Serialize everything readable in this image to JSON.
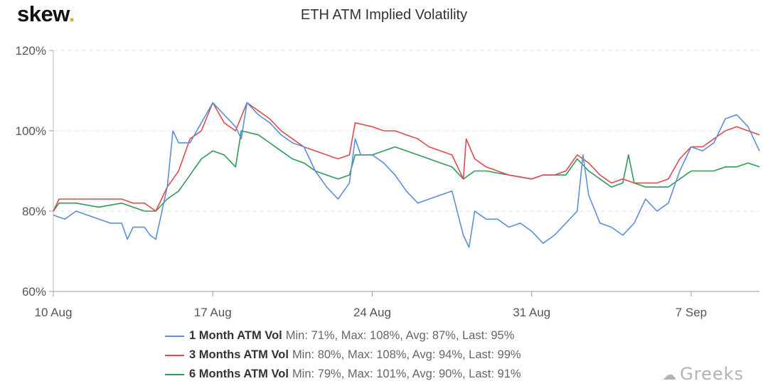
{
  "brand": {
    "name": "skew",
    "dot": "."
  },
  "watermark": {
    "icon": "wechat-icon",
    "text": "Greeks"
  },
  "chart_data": {
    "type": "line",
    "title": "ETH ATM Implied Volatility",
    "xlabel": "",
    "ylabel": "",
    "x_axis_type": "date",
    "x_range": [
      "2020-08-10",
      "2020-09-10"
    ],
    "x_ticks": [
      "10 Aug",
      "17 Aug",
      "24 Aug",
      "31 Aug",
      "7 Sep"
    ],
    "x_tick_dates": [
      "2020-08-10",
      "2020-08-17",
      "2020-08-24",
      "2020-08-31",
      "2020-09-07"
    ],
    "ylim": [
      60,
      120
    ],
    "y_ticks": [
      "60%",
      "80%",
      "100%",
      "120%"
    ],
    "y_tick_values": [
      60,
      80,
      100,
      120
    ],
    "grid": "horizontal dashed",
    "legend_position": "bottom",
    "series": [
      {
        "name": "1 Month ATM Vol",
        "stats": "Min: 71%, Max: 108%, Avg: 87%, Last: 95%",
        "color": "#5b8fd6",
        "points": [
          [
            "2020-08-10T00:00",
            79
          ],
          [
            "2020-08-10T12:00",
            78
          ],
          [
            "2020-08-11T00:00",
            80
          ],
          [
            "2020-08-11T12:00",
            79
          ],
          [
            "2020-08-12T00:00",
            78
          ],
          [
            "2020-08-12T12:00",
            77
          ],
          [
            "2020-08-13T00:00",
            77
          ],
          [
            "2020-08-13T06:00",
            73
          ],
          [
            "2020-08-13T12:00",
            76
          ],
          [
            "2020-08-14T00:00",
            76
          ],
          [
            "2020-08-14T06:00",
            74
          ],
          [
            "2020-08-14T12:00",
            73
          ],
          [
            "2020-08-15T00:00",
            86
          ],
          [
            "2020-08-15T06:00",
            100
          ],
          [
            "2020-08-15T12:00",
            97
          ],
          [
            "2020-08-16T00:00",
            97
          ],
          [
            "2020-08-16T12:00",
            102
          ],
          [
            "2020-08-17T00:00",
            107
          ],
          [
            "2020-08-17T12:00",
            104
          ],
          [
            "2020-08-18T00:00",
            101
          ],
          [
            "2020-08-18T06:00",
            98
          ],
          [
            "2020-08-18T12:00",
            107
          ],
          [
            "2020-08-19T00:00",
            104
          ],
          [
            "2020-08-19T12:00",
            102
          ],
          [
            "2020-08-20T00:00",
            99
          ],
          [
            "2020-08-20T12:00",
            97
          ],
          [
            "2020-08-21T00:00",
            96
          ],
          [
            "2020-08-21T12:00",
            90
          ],
          [
            "2020-08-22T00:00",
            86
          ],
          [
            "2020-08-22T12:00",
            83
          ],
          [
            "2020-08-23T00:00",
            87
          ],
          [
            "2020-08-23T06:00",
            98
          ],
          [
            "2020-08-23T12:00",
            94
          ],
          [
            "2020-08-24T00:00",
            94
          ],
          [
            "2020-08-24T12:00",
            92
          ],
          [
            "2020-08-25T00:00",
            89
          ],
          [
            "2020-08-25T12:00",
            85
          ],
          [
            "2020-08-26T00:00",
            82
          ],
          [
            "2020-08-26T12:00",
            83
          ],
          [
            "2020-08-27T00:00",
            84
          ],
          [
            "2020-08-27T12:00",
            85
          ],
          [
            "2020-08-28T00:00",
            74
          ],
          [
            "2020-08-28T06:00",
            71
          ],
          [
            "2020-08-28T12:00",
            80
          ],
          [
            "2020-08-29T00:00",
            78
          ],
          [
            "2020-08-29T12:00",
            78
          ],
          [
            "2020-08-30T00:00",
            76
          ],
          [
            "2020-08-30T12:00",
            77
          ],
          [
            "2020-08-31T00:00",
            75
          ],
          [
            "2020-08-31T12:00",
            72
          ],
          [
            "2020-09-01T00:00",
            74
          ],
          [
            "2020-09-01T12:00",
            77
          ],
          [
            "2020-09-02T00:00",
            80
          ],
          [
            "2020-09-02T06:00",
            94
          ],
          [
            "2020-09-02T12:00",
            84
          ],
          [
            "2020-09-03T00:00",
            77
          ],
          [
            "2020-09-03T12:00",
            76
          ],
          [
            "2020-09-04T00:00",
            74
          ],
          [
            "2020-09-04T12:00",
            77
          ],
          [
            "2020-09-05T00:00",
            83
          ],
          [
            "2020-09-05T12:00",
            80
          ],
          [
            "2020-09-06T00:00",
            82
          ],
          [
            "2020-09-06T12:00",
            90
          ],
          [
            "2020-09-07T00:00",
            96
          ],
          [
            "2020-09-07T12:00",
            95
          ],
          [
            "2020-09-08T00:00",
            97
          ],
          [
            "2020-09-08T12:00",
            103
          ],
          [
            "2020-09-09T00:00",
            104
          ],
          [
            "2020-09-09T12:00",
            101
          ],
          [
            "2020-09-10T00:00",
            95
          ]
        ]
      },
      {
        "name": "3 Months ATM Vol",
        "stats": "Min: 80%, Max: 108%, Avg: 94%, Last: 99%",
        "color": "#e04a4a",
        "points": [
          [
            "2020-08-10T00:00",
            80
          ],
          [
            "2020-08-10T06:00",
            83
          ],
          [
            "2020-08-11T00:00",
            83
          ],
          [
            "2020-08-12T00:00",
            83
          ],
          [
            "2020-08-13T00:00",
            83
          ],
          [
            "2020-08-13T12:00",
            82
          ],
          [
            "2020-08-14T00:00",
            82
          ],
          [
            "2020-08-14T12:00",
            80
          ],
          [
            "2020-08-15T00:00",
            86
          ],
          [
            "2020-08-15T12:00",
            90
          ],
          [
            "2020-08-16T00:00",
            98
          ],
          [
            "2020-08-16T12:00",
            100
          ],
          [
            "2020-08-17T00:00",
            107
          ],
          [
            "2020-08-17T12:00",
            102
          ],
          [
            "2020-08-18T00:00",
            100
          ],
          [
            "2020-08-18T12:00",
            107
          ],
          [
            "2020-08-19T00:00",
            105
          ],
          [
            "2020-08-19T12:00",
            103
          ],
          [
            "2020-08-20T00:00",
            100
          ],
          [
            "2020-08-20T12:00",
            98
          ],
          [
            "2020-08-21T00:00",
            96
          ],
          [
            "2020-08-21T12:00",
            95
          ],
          [
            "2020-08-22T00:00",
            94
          ],
          [
            "2020-08-22T12:00",
            93
          ],
          [
            "2020-08-23T00:00",
            94
          ],
          [
            "2020-08-23T06:00",
            102
          ],
          [
            "2020-08-24T00:00",
            101
          ],
          [
            "2020-08-24T12:00",
            100
          ],
          [
            "2020-08-25T00:00",
            100
          ],
          [
            "2020-08-25T12:00",
            99
          ],
          [
            "2020-08-26T00:00",
            98
          ],
          [
            "2020-08-26T12:00",
            96
          ],
          [
            "2020-08-27T00:00",
            95
          ],
          [
            "2020-08-27T12:00",
            94
          ],
          [
            "2020-08-28T00:00",
            88
          ],
          [
            "2020-08-28T03:00",
            98
          ],
          [
            "2020-08-28T12:00",
            93
          ],
          [
            "2020-08-29T00:00",
            91
          ],
          [
            "2020-08-30T00:00",
            89
          ],
          [
            "2020-08-31T00:00",
            88
          ],
          [
            "2020-08-31T12:00",
            89
          ],
          [
            "2020-09-01T00:00",
            89
          ],
          [
            "2020-09-01T12:00",
            90
          ],
          [
            "2020-09-02T00:00",
            94
          ],
          [
            "2020-09-02T12:00",
            92
          ],
          [
            "2020-09-03T00:00",
            89
          ],
          [
            "2020-09-03T12:00",
            87
          ],
          [
            "2020-09-04T00:00",
            88
          ],
          [
            "2020-09-04T12:00",
            87
          ],
          [
            "2020-09-05T00:00",
            87
          ],
          [
            "2020-09-05T12:00",
            87
          ],
          [
            "2020-09-06T00:00",
            88
          ],
          [
            "2020-09-06T12:00",
            93
          ],
          [
            "2020-09-07T00:00",
            96
          ],
          [
            "2020-09-07T12:00",
            96
          ],
          [
            "2020-09-08T00:00",
            98
          ],
          [
            "2020-09-08T12:00",
            100
          ],
          [
            "2020-09-09T00:00",
            101
          ],
          [
            "2020-09-09T12:00",
            100
          ],
          [
            "2020-09-10T00:00",
            99
          ]
        ]
      },
      {
        "name": "6 Months ATM Vol",
        "stats": "Min: 79%, Max: 101%, Avg: 90%, Last: 91%",
        "color": "#2e9a5a",
        "points": [
          [
            "2020-08-10T00:00",
            80
          ],
          [
            "2020-08-10T06:00",
            82
          ],
          [
            "2020-08-11T00:00",
            82
          ],
          [
            "2020-08-12T00:00",
            81
          ],
          [
            "2020-08-13T00:00",
            82
          ],
          [
            "2020-08-13T12:00",
            81
          ],
          [
            "2020-08-14T00:00",
            80
          ],
          [
            "2020-08-14T12:00",
            80
          ],
          [
            "2020-08-15T00:00",
            83
          ],
          [
            "2020-08-15T12:00",
            85
          ],
          [
            "2020-08-16T00:00",
            89
          ],
          [
            "2020-08-16T12:00",
            93
          ],
          [
            "2020-08-17T00:00",
            95
          ],
          [
            "2020-08-17T12:00",
            94
          ],
          [
            "2020-08-18T00:00",
            91
          ],
          [
            "2020-08-18T06:00",
            100
          ],
          [
            "2020-08-19T00:00",
            99
          ],
          [
            "2020-08-19T12:00",
            97
          ],
          [
            "2020-08-20T00:00",
            95
          ],
          [
            "2020-08-20T12:00",
            93
          ],
          [
            "2020-08-21T00:00",
            92
          ],
          [
            "2020-08-21T12:00",
            90
          ],
          [
            "2020-08-22T00:00",
            89
          ],
          [
            "2020-08-22T12:00",
            88
          ],
          [
            "2020-08-23T00:00",
            89
          ],
          [
            "2020-08-23T06:00",
            94
          ],
          [
            "2020-08-24T00:00",
            94
          ],
          [
            "2020-08-24T12:00",
            95
          ],
          [
            "2020-08-25T00:00",
            96
          ],
          [
            "2020-08-25T12:00",
            95
          ],
          [
            "2020-08-26T00:00",
            94
          ],
          [
            "2020-08-26T12:00",
            93
          ],
          [
            "2020-08-27T00:00",
            92
          ],
          [
            "2020-08-27T12:00",
            91
          ],
          [
            "2020-08-28T00:00",
            88
          ],
          [
            "2020-08-28T12:00",
            90
          ],
          [
            "2020-08-29T00:00",
            90
          ],
          [
            "2020-08-30T00:00",
            89
          ],
          [
            "2020-08-31T00:00",
            88
          ],
          [
            "2020-08-31T12:00",
            89
          ],
          [
            "2020-09-01T00:00",
            89
          ],
          [
            "2020-09-01T12:00",
            89
          ],
          [
            "2020-09-02T00:00",
            93
          ],
          [
            "2020-09-02T12:00",
            90
          ],
          [
            "2020-09-03T00:00",
            88
          ],
          [
            "2020-09-03T12:00",
            86
          ],
          [
            "2020-09-04T00:00",
            87
          ],
          [
            "2020-09-04T06:00",
            94
          ],
          [
            "2020-09-04T12:00",
            87
          ],
          [
            "2020-09-05T00:00",
            86
          ],
          [
            "2020-09-05T12:00",
            86
          ],
          [
            "2020-09-06T00:00",
            86
          ],
          [
            "2020-09-06T12:00",
            88
          ],
          [
            "2020-09-07T00:00",
            90
          ],
          [
            "2020-09-07T12:00",
            90
          ],
          [
            "2020-09-08T00:00",
            90
          ],
          [
            "2020-09-08T12:00",
            91
          ],
          [
            "2020-09-09T00:00",
            91
          ],
          [
            "2020-09-09T12:00",
            92
          ],
          [
            "2020-09-10T00:00",
            91
          ]
        ]
      }
    ]
  }
}
